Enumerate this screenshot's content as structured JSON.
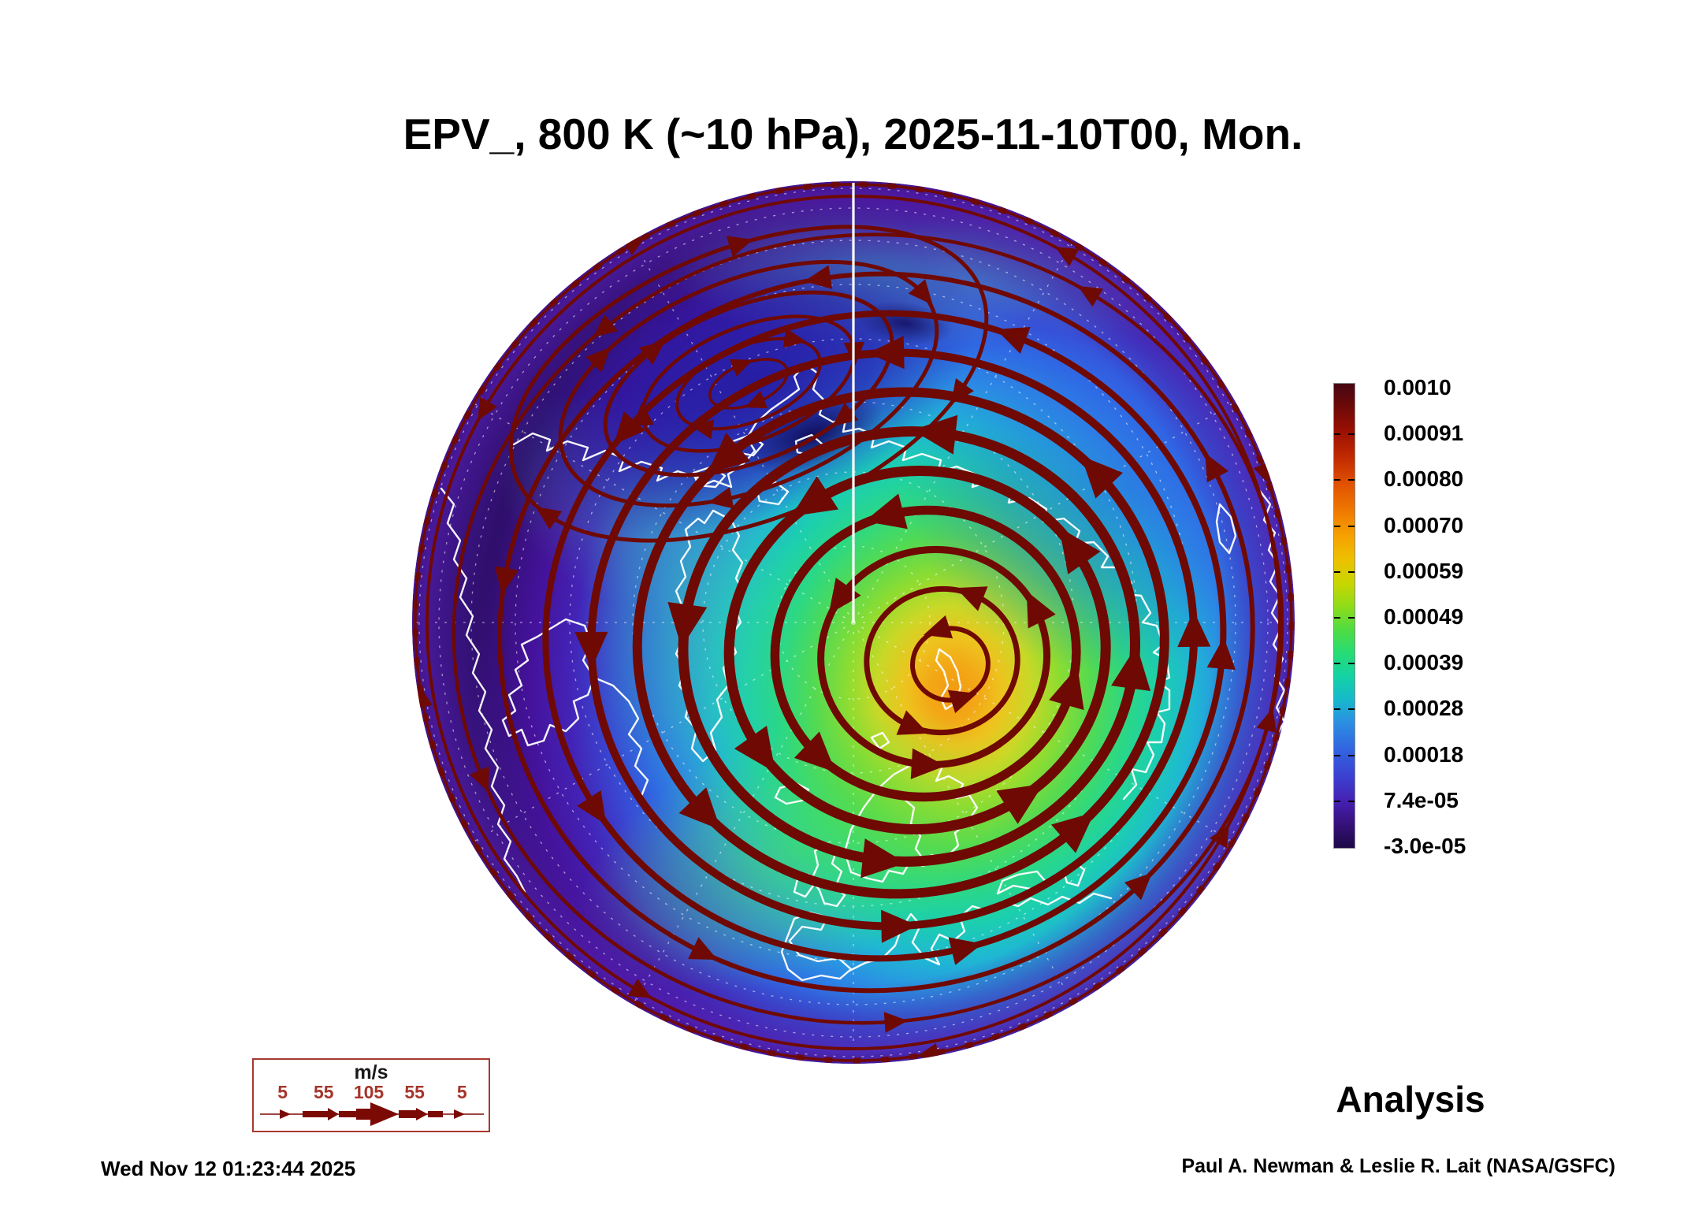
{
  "title": "EPV_, 800 K (~10 hPa), 2025-11-10T00, Mon.",
  "status_label": "Analysis",
  "footer": {
    "timestamp": "Wed Nov 12 01:23:44 2025",
    "credit": "Paul A. Newman & Leslie R. Lait (NASA/GSFC)"
  },
  "colorbar": {
    "labels": [
      "0.0010",
      "0.00091",
      "0.00080",
      "0.00070",
      "0.00059",
      "0.00049",
      "0.00039",
      "0.00028",
      "0.00018",
      "7.4e-05",
      "-3.0e-05"
    ],
    "top_color": "#460612",
    "bottom_color": "#1d0947"
  },
  "wind_legend": {
    "unit": "m/s",
    "values": [
      "5",
      "55",
      "105",
      "55",
      "5"
    ],
    "arrow_color": "#7b0a04"
  },
  "chart_data": {
    "type": "heatmap",
    "title": "EPV_, 800 K (~10 hPa), 2025-11-10T00, Mon.",
    "field": "Ertel potential vorticity (EPV) with wind streamlines",
    "level": "800 K (~10 hPa)",
    "valid_time": "2025-11-10T00 (Monday)",
    "projection": "north polar orthographic hemisphere, coastlines in white",
    "colorbar_ticks": [
      0.001,
      0.00091,
      0.0008,
      0.0007,
      0.00059,
      0.00049,
      0.00039,
      0.00028,
      0.00018,
      7.4e-05,
      -3e-05
    ],
    "colorbar_range": [
      -3e-05,
      0.001
    ],
    "wind_speed_scale_ms": [
      5,
      55,
      105,
      55,
      5
    ],
    "annotations": [
      "Analysis"
    ],
    "legend_position": "colorbar right of map, wind-speed arrow key lower left",
    "features": [
      "cyclonic polar vortex with high EPV core (~0.0007, orange) centered near Novaya Zemlya / Barents Sea",
      "broad green high-EPV annulus over Greenland, northern Europe and Scandinavia",
      "anticyclone (dark blue, low EPV) over eastern Siberia / Chukotka with clockwise streamlines",
      "low EPV (violet, near -3.0e-05 to 7.4e-05) ring around the hemisphere rim at low latitudes",
      "dark-red wind streamlines circulate counterclockwise around the vortex, thickest near the vortex jet"
    ]
  }
}
